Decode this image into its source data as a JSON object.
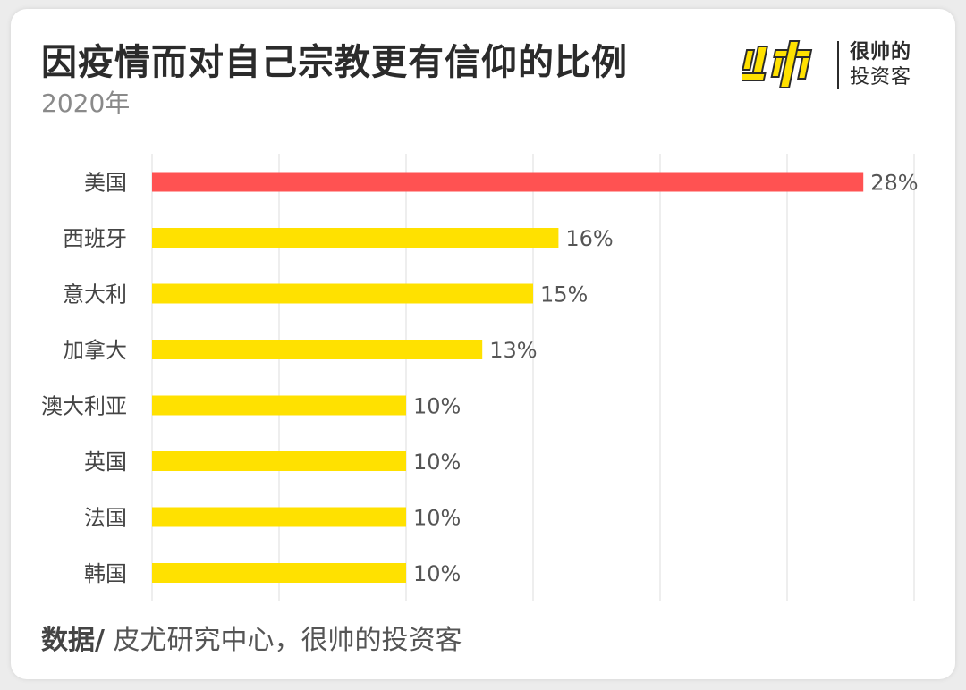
{
  "header": {
    "title": "因疫情而对自己宗教更有信仰的比例",
    "subtitle": "2020年"
  },
  "brand": {
    "logo_icon": "shuai-logo-icon",
    "line1": "很帅的",
    "line2": "投资客",
    "logo_color": "#ffe100"
  },
  "footer": {
    "label": "数据/",
    "text": " 皮尤研究中心，很帅的投资客"
  },
  "chart_data": {
    "type": "bar",
    "orientation": "horizontal",
    "title": "因疫情而对自己宗教更有信仰的比例",
    "subtitle": "2020年",
    "categories": [
      "美国",
      "西班牙",
      "意大利",
      "加拿大",
      "澳大利亚",
      "英国",
      "法国",
      "韩国"
    ],
    "values": [
      28,
      16,
      15,
      13,
      10,
      10,
      10,
      10
    ],
    "value_labels": [
      "28%",
      "16%",
      "15%",
      "13%",
      "10%",
      "10%",
      "10%",
      "10%"
    ],
    "xlim": [
      0,
      30
    ],
    "grid": true,
    "highlight_color": "#ff5252",
    "bar_color": "#ffe100",
    "highlight_index": 0
  }
}
